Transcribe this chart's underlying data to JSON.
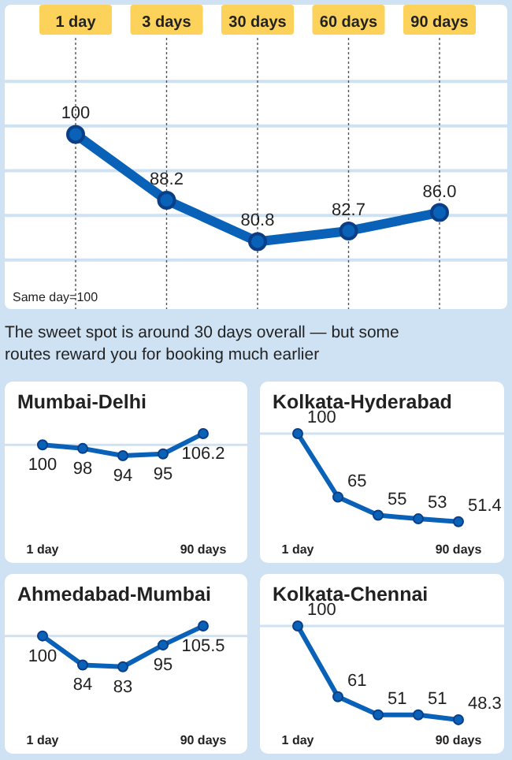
{
  "chart_data": [
    {
      "type": "line",
      "categories": [
        "1 day",
        "3 days",
        "30 days",
        "60 days",
        "90 days"
      ],
      "values": [
        100,
        88.2,
        80.8,
        82.7,
        86.0
      ],
      "value_labels": [
        "100",
        "88.2",
        "80.8",
        "82.7",
        "86.0"
      ],
      "color": "#0a62b8",
      "marker": "circle",
      "ylim": [
        69,
        117
      ],
      "yticks": [
        {
          "value": 77.5,
          "label": null
        },
        {
          "value": 85.5,
          "label": null
        },
        {
          "value": 93.5,
          "label": null
        },
        {
          "value": 101.5,
          "label": null
        },
        {
          "value": 109.5,
          "label": null
        }
      ],
      "grid": true,
      "tick_labels": "x",
      "annotations": [
        "Same day=100",
        "The sweet spot is around 30 days overall — but some routes reward you for booking much earlier"
      ]
    },
    {
      "type": "line",
      "title": "Mumbai-Delhi",
      "categories": [
        "1 day",
        null,
        null,
        null,
        "90 days"
      ],
      "values": [
        100,
        98,
        94,
        95,
        106.2
      ],
      "color": "#0a62b8",
      "marker": "circle",
      "data_labels": true,
      "tick_labels": "x",
      "ref_lines": [
        {
          "axis": "y",
          "value": 100,
          "color": "#cfe2f3"
        }
      ]
    },
    {
      "type": "line",
      "title": "Kolkata-Hyderabad",
      "categories": [
        "1 day",
        null,
        null,
        null,
        "90 days"
      ],
      "values": [
        100,
        65,
        55,
        53,
        51.4
      ],
      "color": "#0a62b8",
      "marker": "circle",
      "data_labels": true,
      "tick_labels": "x",
      "ref_lines": [
        {
          "axis": "y",
          "value": 100,
          "color": "#cfe2f3"
        }
      ]
    },
    {
      "type": "line",
      "title": "Ahmedabad-Mumbai",
      "categories": [
        "1 day",
        null,
        null,
        null,
        "90 days"
      ],
      "values": [
        100,
        84,
        83,
        95,
        105.5
      ],
      "color": "#0a62b8",
      "marker": "circle",
      "data_labels": true,
      "tick_labels": "x",
      "ref_lines": [
        {
          "axis": "y",
          "value": 100,
          "color": "#cfe2f3"
        }
      ]
    },
    {
      "type": "line",
      "title": "Kolkata-Chennai",
      "categories": [
        "1 day",
        null,
        null,
        null,
        "90 days"
      ],
      "values": [
        100,
        61,
        51,
        51,
        48.3
      ],
      "color": "#0a62b8",
      "marker": "circle",
      "data_labels": true,
      "tick_labels": "x",
      "ref_lines": [
        {
          "axis": "y",
          "value": 100,
          "color": "#cfe2f3"
        }
      ]
    }
  ]
}
